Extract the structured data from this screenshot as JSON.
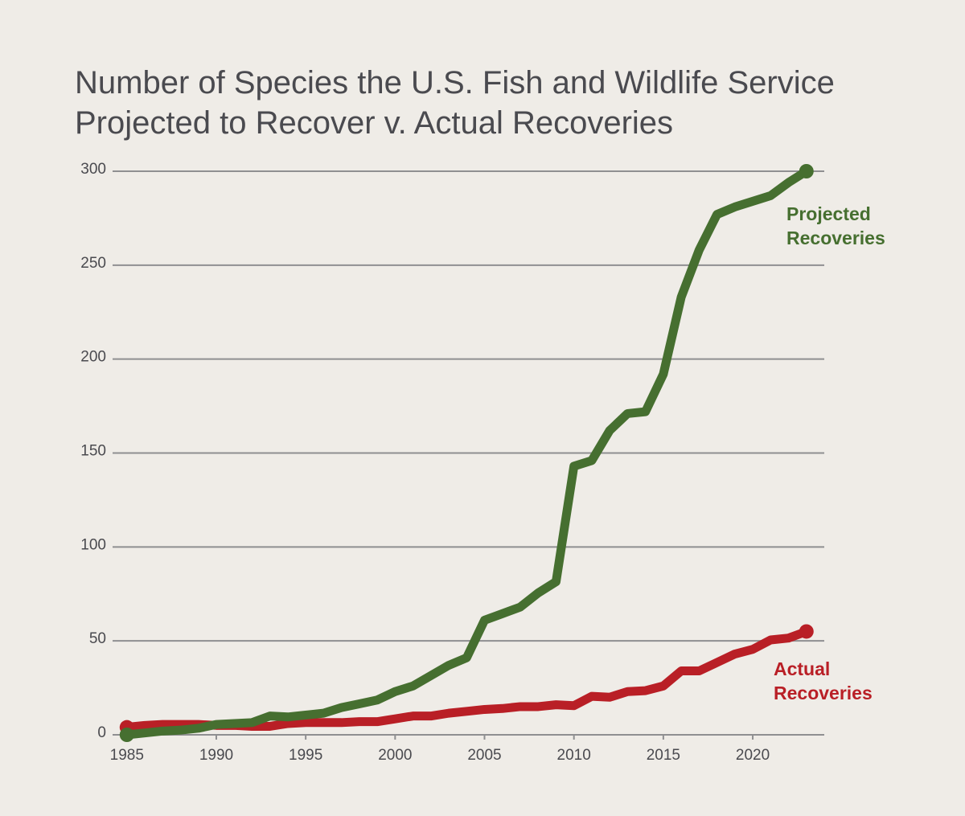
{
  "chart_data": {
    "type": "line",
    "title": "Number of Species the U.S. Fish and Wildlife Service Projected to Recover v. Actual Recoveries",
    "x": [
      1985,
      1986,
      1987,
      1988,
      1989,
      1990,
      1991,
      1992,
      1993,
      1994,
      1995,
      1996,
      1997,
      1998,
      1999,
      2000,
      2001,
      2002,
      2003,
      2004,
      2005,
      2006,
      2007,
      2008,
      2009,
      2010,
      2011,
      2012,
      2013,
      2014,
      2015,
      2016,
      2017,
      2018,
      2019,
      2020,
      2021,
      2022,
      2023
    ],
    "series": [
      {
        "name": "Projected Recoveries",
        "color": "#466f30",
        "values": [
          0,
          1,
          2,
          2.5,
          3.5,
          5.5,
          6,
          6.5,
          10,
          9.5,
          10.5,
          11.5,
          14.5,
          16.5,
          18.5,
          23,
          26,
          31.5,
          37,
          41,
          61,
          64.5,
          68,
          75.5,
          81.5,
          143,
          146,
          162,
          171,
          172,
          192,
          233,
          258,
          277,
          281,
          284,
          287,
          294,
          300
        ]
      },
      {
        "name": "Actual Recoveries",
        "color": "#b91f26",
        "values": [
          4,
          5,
          5.5,
          5.5,
          5.5,
          5,
          5,
          4.5,
          4.5,
          6,
          6.5,
          6.5,
          6.5,
          7,
          7,
          8.5,
          10,
          10,
          11.5,
          12.5,
          13.5,
          14,
          15,
          15,
          16,
          15.5,
          20.5,
          20,
          23,
          23.5,
          26,
          34,
          34,
          38.5,
          43,
          45.5,
          50.5,
          51.5,
          55
        ]
      }
    ],
    "xlim": [
      1984.2,
      2024
    ],
    "xticks": [
      1985,
      1990,
      1995,
      2000,
      2005,
      2010,
      2015,
      2020
    ],
    "ylim": [
      0,
      300
    ],
    "yticks": [
      0,
      50,
      100,
      150,
      200,
      250,
      300
    ],
    "grid": true
  }
}
